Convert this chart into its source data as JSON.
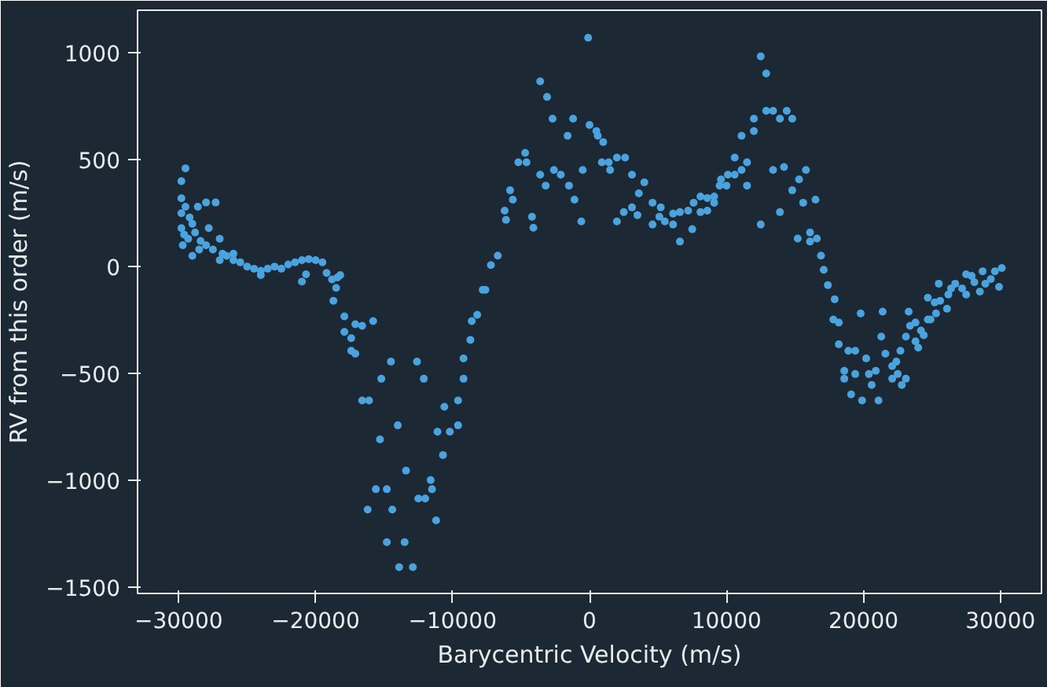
{
  "chart_data": {
    "type": "scatter",
    "xlabel": "Barycentric Velocity (m/s)",
    "ylabel": "RV from this order (m/s)",
    "xlim": [
      -33000,
      33000
    ],
    "ylim": [
      -1530,
      1200
    ],
    "xticks": [
      {
        "value": -30000,
        "label": "−30000"
      },
      {
        "value": -20000,
        "label": "−20000"
      },
      {
        "value": -10000,
        "label": "−10000"
      },
      0,
      10000,
      20000,
      30000
    ],
    "yticks": [
      {
        "value": -1500,
        "label": "−1500"
      },
      {
        "value": -1000,
        "label": "−1000"
      },
      {
        "value": -500,
        "label": "−500"
      },
      0,
      500,
      1000
    ],
    "grid": false,
    "marker": "circle",
    "series": [
      {
        "color": "#4aa3df",
        "x": [
          -29800,
          -29500,
          -29800,
          -29500,
          -29800,
          -29200,
          -29800,
          -29600,
          -29300,
          -29000,
          -28600,
          -28000,
          -27300,
          -28800,
          -28400,
          -28000,
          -27800,
          -27500,
          -27000,
          -26800,
          -26500,
          -26000,
          -25500,
          -25000,
          -24500,
          -24000,
          -23500,
          -23000,
          -22500,
          -22000,
          -21500,
          -21000,
          -20500,
          -20000,
          -19500,
          -19200,
          -18800,
          -18500,
          -18200,
          -29700,
          -29000,
          -28500,
          -27000,
          -26000,
          -24000,
          -21000,
          -20700,
          -18400,
          -18700,
          -17900,
          -17900,
          -17400,
          -17400,
          -17100,
          -17100,
          -16600,
          -15800,
          -16600,
          -16100,
          -15200,
          -14500,
          -12600,
          -12100,
          -15300,
          -14000,
          -16200,
          -14400,
          -15600,
          -14800,
          -13400,
          -12500,
          -12000,
          -11200,
          -11600,
          -11500,
          -14800,
          -13500,
          -13900,
          -12900,
          -10700,
          -11100,
          -10200,
          -9600,
          -10600,
          -9600,
          -9200,
          -9200,
          -8700,
          -8600,
          -8200,
          -7800,
          -7200,
          -6700,
          -7600,
          -100,
          -3600,
          -3100,
          -2700,
          -1200,
          -1600,
          0,
          500,
          600,
          1000,
          -4700,
          -5200,
          -4600,
          -5800,
          -5600,
          -6200,
          -6100,
          -4200,
          -4100,
          -3600,
          -3200,
          -2600,
          -2100,
          -1500,
          -1100,
          -500,
          -600,
          900,
          1400,
          1500,
          2000,
          2600,
          3100,
          4000,
          3600,
          4600,
          5200,
          3100,
          2500,
          2000,
          3500,
          4600,
          5100,
          5500,
          6100,
          6100,
          6600,
          7200,
          6600,
          7500,
          7600,
          8100,
          8600,
          9100,
          9100,
          8100,
          8600,
          9500,
          9600,
          10000,
          10100,
          10600,
          10600,
          11100,
          11500,
          11500,
          11100,
          12000,
          12000,
          12500,
          12900,
          12900,
          13400,
          13900,
          14400,
          14800,
          12500,
          13400,
          14200,
          14800,
          15300,
          15800,
          15600,
          16500,
          13900,
          15200,
          16100,
          16100,
          16600,
          16900,
          17100,
          17400,
          17900,
          17800,
          18200,
          18200,
          18900,
          19400,
          18600,
          18600,
          19100,
          19900,
          21100,
          19400,
          20200,
          20400,
          20600,
          20900,
          19800,
          21400,
          21300,
          21600,
          22100,
          22400,
          22700,
          22100,
          22500,
          22800,
          23100,
          23100,
          23800,
          24000,
          23300,
          23400,
          23800,
          24200,
          24400,
          24700,
          24700,
          24900,
          25300,
          25200,
          25500,
          25600,
          26100,
          26200,
          26400,
          26700,
          27200,
          27500,
          27900,
          27500,
          28500,
          28900,
          29300,
          29600,
          29900,
          30100,
          28700,
          28100
        ],
        "values": [
          400,
          460,
          320,
          280,
          250,
          230,
          180,
          150,
          130,
          200,
          280,
          300,
          300,
          160,
          120,
          100,
          180,
          80,
          130,
          60,
          50,
          30,
          20,
          0,
          -10,
          -20,
          -10,
          0,
          -10,
          10,
          20,
          30,
          35,
          30,
          20,
          -30,
          -60,
          -100,
          -40,
          100,
          50,
          80,
          30,
          60,
          -40,
          -70,
          -36,
          -51,
          -160,
          -233,
          -306,
          -335,
          -394,
          -408,
          -270,
          -277,
          -255,
          -627,
          -627,
          -525,
          -445,
          -445,
          -525,
          -809,
          -743,
          -1137,
          -1137,
          -1042,
          -1042,
          -955,
          -1086,
          -1086,
          -1188,
          -999,
          -1042,
          -1290,
          -1290,
          -1407,
          -1407,
          -882,
          -773,
          -773,
          -743,
          -656,
          -627,
          -525,
          -430,
          -343,
          -255,
          -226,
          -109,
          7,
          51,
          -109,
          1071,
          867,
          794,
          692,
          692,
          612,
          663,
          634,
          612,
          583,
          532,
          488,
          488,
          357,
          313,
          262,
          219,
          233,
          182,
          430,
          379,
          452,
          430,
          379,
          313,
          452,
          211,
          488,
          488,
          452,
          510,
          510,
          430,
          394,
          343,
          299,
          277,
          277,
          255,
          211,
          241,
          197,
          233,
          211,
          197,
          248,
          255,
          262,
          117,
          175,
          299,
          328,
          321,
          328,
          299,
          255,
          262,
          379,
          408,
          379,
          430,
          430,
          510,
          452,
          488,
          379,
          612,
          634,
          692,
          984,
          904,
          729,
          729,
          692,
          729,
          692,
          197,
          452,
          466,
          357,
          408,
          452,
          299,
          313,
          255,
          131,
          160,
          117,
          131,
          51,
          -15,
          -87,
          -153,
          -248,
          -262,
          -364,
          -394,
          -394,
          -488,
          -525,
          -598,
          -627,
          -627,
          -503,
          -430,
          -503,
          -554,
          -488,
          -219,
          -211,
          -328,
          -408,
          -466,
          -445,
          -394,
          -525,
          -503,
          -554,
          -525,
          -328,
          -350,
          -379,
          -211,
          -277,
          -262,
          -299,
          -321,
          -248,
          -146,
          -248,
          -219,
          -168,
          -80,
          -160,
          -197,
          -131,
          -102,
          -80,
          -102,
          -36,
          -44,
          -131,
          -117,
          -80,
          -58,
          -22,
          -95,
          -7,
          -22,
          -73
        ]
      }
    ]
  }
}
